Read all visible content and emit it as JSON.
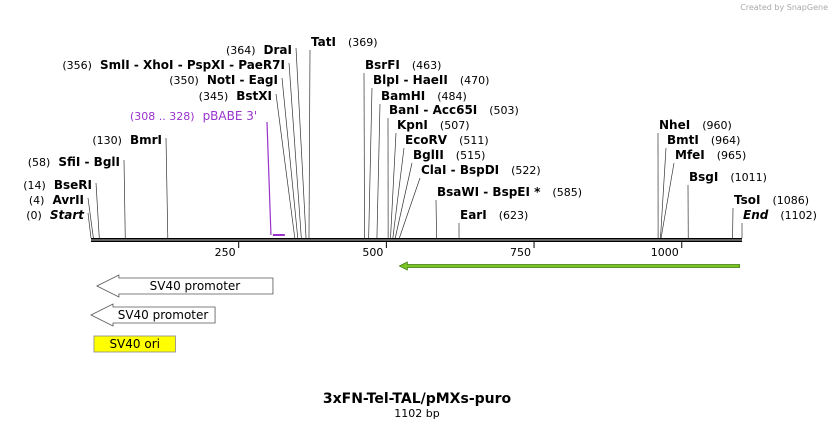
{
  "header": {
    "logo": "Created by SnapGene"
  },
  "title": "3xFN-Tel-TAL/pMXs-puro",
  "subtitle": "1102 bp",
  "ruler": {
    "start": 0,
    "end": 1102,
    "ticks": [
      250,
      500,
      750,
      1000
    ]
  },
  "enzymes": [
    {
      "name": "Start",
      "position": {
        "value": 0,
        "label": "(0)"
      }
    },
    {
      "name": "AvrII",
      "position": {
        "value": 4,
        "label": "(4)"
      }
    },
    {
      "name": "BseRI",
      "position": {
        "value": 14,
        "label": "(14)"
      }
    },
    {
      "name": "SfiI  -  BglI",
      "position": {
        "value": 58,
        "label": "(58)"
      }
    },
    {
      "name": "BmrI",
      "position": {
        "value": 130,
        "label": "(130)"
      }
    },
    {
      "name": "BstXI",
      "position": {
        "value": 345,
        "label": "(345)"
      }
    },
    {
      "name": "NotI  -  EagI",
      "position": {
        "value": 350,
        "label": "(350)"
      }
    },
    {
      "name": "SmlI  -  XhoI  -  PspXI  -  PaeR7I",
      "position": {
        "value": 356,
        "label": "(356)"
      }
    },
    {
      "name": "DraI",
      "position": {
        "value": 364,
        "label": "(364)"
      }
    },
    {
      "name": "TatI",
      "position": {
        "value": 369,
        "label": "(369)"
      }
    },
    {
      "name": "BsrFI",
      "position": {
        "value": 463,
        "label": "(463)"
      }
    },
    {
      "name": "BlpI  -  HaeII",
      "position": {
        "value": 470,
        "label": "(470)"
      }
    },
    {
      "name": "BamHI",
      "position": {
        "value": 484,
        "label": "(484)"
      }
    },
    {
      "name": "BanI  -  Acc65I",
      "position": {
        "value": 503,
        "label": "(503)"
      }
    },
    {
      "name": "KpnI",
      "position": {
        "value": 507,
        "label": "(507)"
      }
    },
    {
      "name": "EcoRV",
      "position": {
        "value": 511,
        "label": "(511)"
      }
    },
    {
      "name": "BglII",
      "position": {
        "value": 515,
        "label": "(515)"
      }
    },
    {
      "name": "ClaI  -  BspDI",
      "position": {
        "value": 522,
        "label": "(522)"
      }
    },
    {
      "name": "BsaWI  -  BspEI *",
      "position": {
        "value": 585,
        "label": "(585)"
      }
    },
    {
      "name": "EarI",
      "position": {
        "value": 623,
        "label": "(623)"
      }
    },
    {
      "name": "NheI",
      "position": {
        "value": 960,
        "label": "(960)"
      }
    },
    {
      "name": "BmtI",
      "position": {
        "value": 964,
        "label": "(964)"
      }
    },
    {
      "name": "MfeI",
      "position": {
        "value": 965,
        "label": "(965)"
      }
    },
    {
      "name": "BsgI",
      "position": {
        "value": 1011,
        "label": "(1011)"
      }
    },
    {
      "name": "TsoI",
      "position": {
        "value": 1086,
        "label": "(1086)"
      }
    },
    {
      "name": "End",
      "position": {
        "value": 1102,
        "label": "(1102)"
      }
    }
  ],
  "primer": {
    "name": "pBABE 3'",
    "range": {
      "label": "(308 .. 328)",
      "start": 308,
      "end": 328
    },
    "color": "#9933cc"
  },
  "features": [
    {
      "start": 522,
      "end": 1098,
      "color": "#7cc520"
    },
    {
      "name": "SV40 promoter",
      "start": 10,
      "end": 308,
      "color": "#ffffff"
    },
    {
      "name": "SV40 promoter",
      "start": 0,
      "end": 210,
      "color": "#ffffff"
    },
    {
      "name": "SV40 ori",
      "start": 5,
      "end": 143,
      "color": "#ffff00"
    }
  ]
}
